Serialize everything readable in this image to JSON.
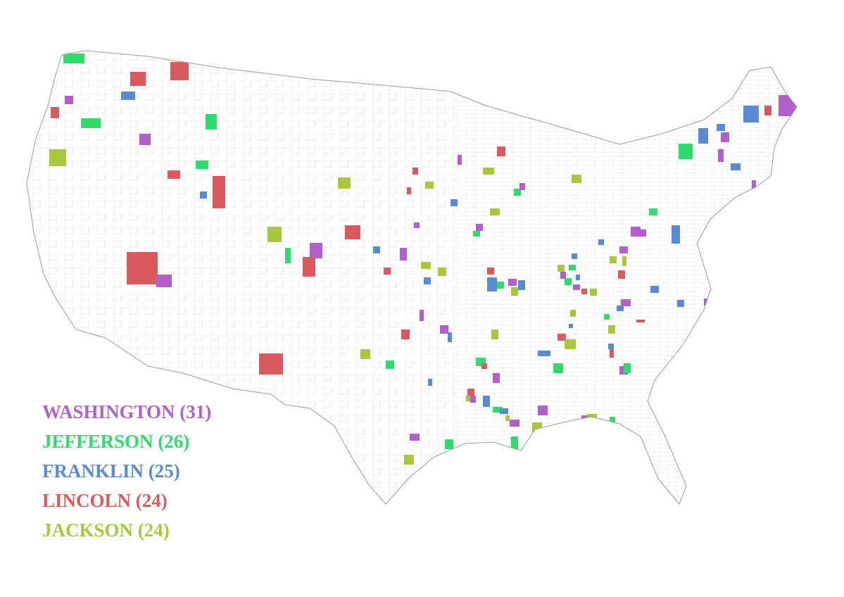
{
  "legend": {
    "items": [
      {
        "label": "WASHINGTON (31)",
        "color": "#b25fcc"
      },
      {
        "label": "JEFFERSON (26)",
        "color": "#2fdb6b"
      },
      {
        "label": "FRANKLIN (25)",
        "color": "#5a8bd1"
      },
      {
        "label": "LINCOLN (24)",
        "color": "#d95a5e"
      },
      {
        "label": "JACKSON (24)",
        "color": "#a8c73c"
      }
    ]
  }
}
